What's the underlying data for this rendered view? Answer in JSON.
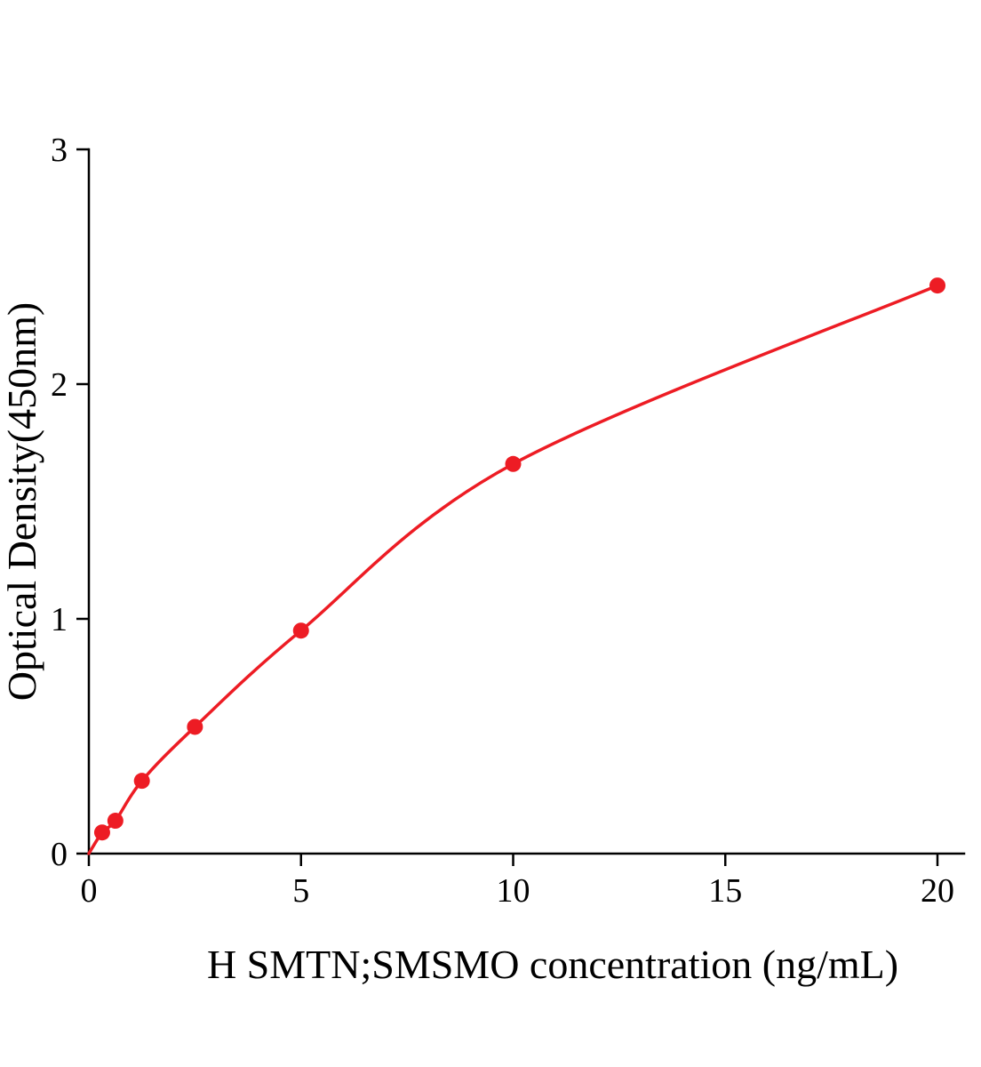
{
  "page": {
    "background_color": "#ffffff"
  },
  "chart_data": {
    "type": "scatter",
    "title": "",
    "xlabel": "H SMTN;SMSMO concentration (ng/mL)",
    "ylabel": "Optical Density(450nm)",
    "x": [
      0.313,
      0.625,
      1.25,
      2.5,
      5,
      10,
      20
    ],
    "y": [
      0.09,
      0.14,
      0.31,
      0.54,
      0.95,
      1.66,
      2.42
    ],
    "curve": {
      "type": "smooth-fit-line",
      "starts_at_origin": true
    },
    "xticks": [
      0,
      5,
      10,
      15,
      20
    ],
    "yticks": [
      0,
      1,
      2,
      3
    ],
    "xlim": [
      0,
      20
    ],
    "ylim": [
      0,
      3
    ],
    "grid": false,
    "legend": false,
    "marker_color": "#ed1c24",
    "line_color": "#ed1c24",
    "axis_color": "#000000"
  }
}
